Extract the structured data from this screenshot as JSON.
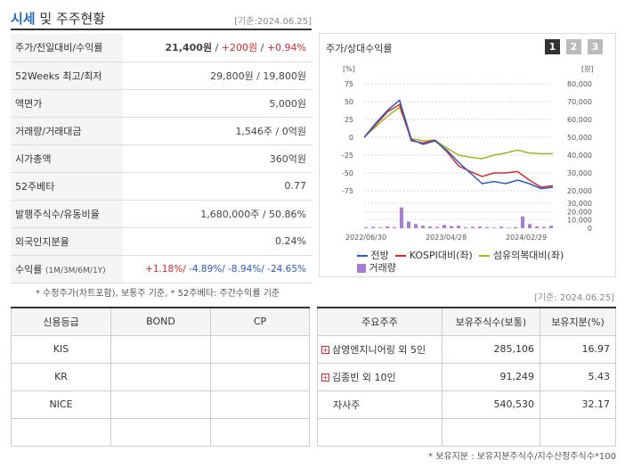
{
  "header": {
    "title_hl": "시세",
    "title_rest": " 및 주주현황",
    "date": "[기준:2024.06.25]"
  },
  "info": {
    "price_label": "주가/전일대비/수익률",
    "price": "21,400원",
    "change": "+200원",
    "rate": "+0.94%",
    "week52_label": "52Weeks 최고/최저",
    "week52_value": "29,800원 / 19,800원",
    "face_label": "액면가",
    "face_value": "5,000원",
    "volume_label": "거래량/거래대금",
    "volume_value": "1,546주 / 0억원",
    "mcap_label": "시가총액",
    "mcap_value": "360억원",
    "beta_label": "52주베타",
    "beta_value": "0.77",
    "shares_label": "발행주식수/유동비율",
    "shares_value": "1,680,000주 / 50.86%",
    "foreign_label": "외국인지분율",
    "foreign_value": "0.24%",
    "return_label": "수익률",
    "return_sub": "(1M/3M/6M/1Y)",
    "r1m": "+1.18%/",
    "r3m": "-4.89%/",
    "r6m": "-8.94%/",
    "r1y": "-24.65%"
  },
  "notes": {
    "note1": "* 수정주가(차트포함), 보통주 기준, * 52주베타: 주간수익률 기준",
    "note2": "[기준: 2024.06.25]",
    "note3": "* 보유지분 : 보유지분주식수/지수산정주식수*100"
  },
  "chart": {
    "title": "주가/상대수익률",
    "pages": [
      "1",
      "2",
      "3"
    ],
    "left_unit": "[%]",
    "right_unit": "[원]",
    "left_ticks": [
      "75",
      "50",
      "25",
      "0",
      "-25",
      "-50",
      "-75"
    ],
    "right_ticks": [
      "80,000",
      "70,000",
      "60,000",
      "50,000",
      "40,000",
      "30,000",
      "20,000"
    ],
    "vol_ticks": [
      "30,000",
      "20,000",
      "10,000",
      "0"
    ],
    "x_ticks": [
      "2022/06/30",
      "2023/04/28",
      "2024/02/29"
    ],
    "legend": {
      "price": "전방",
      "kospi": "KOSPI대비(좌)",
      "textile": "섬유의복대비(좌)",
      "volume": "거래량"
    },
    "colors": {
      "price": "#2a58c8",
      "kospi": "#d9282f",
      "textile": "#99bb22",
      "volume": "#a77cd8"
    }
  },
  "chart_data": {
    "type": "line",
    "x_range": [
      "2022/06/30",
      "2024/06/25"
    ],
    "ylim_left": [
      -75,
      75
    ],
    "ylim_right": [
      20000,
      80000
    ],
    "series": [
      {
        "name": "전방",
        "values": [
          0,
          20,
          38,
          52,
          -3,
          -10,
          -5,
          -18,
          -35,
          -50,
          -65,
          -62,
          -65,
          -60,
          -65,
          -72,
          -70
        ]
      },
      {
        "name": "KOSPI대비(좌)",
        "values": [
          0,
          18,
          36,
          46,
          -5,
          -8,
          -4,
          -20,
          -40,
          -48,
          -55,
          -50,
          -50,
          -48,
          -60,
          -70,
          -68
        ]
      },
      {
        "name": "섬유의복대비(좌)",
        "values": [
          0,
          15,
          30,
          42,
          -2,
          -5,
          -4,
          -15,
          -25,
          -28,
          -30,
          -25,
          -22,
          -18,
          -22,
          -23,
          -23
        ]
      }
    ],
    "volume": {
      "name": "거래량",
      "values": [
        1000,
        1500,
        800,
        2000,
        1200,
        25000,
        8000,
        5000,
        3000,
        2000,
        1500,
        4000,
        2500,
        3000,
        1000,
        1500,
        2000,
        1200,
        800,
        1800,
        600,
        1200,
        14000,
        5000,
        2000,
        1500,
        3000
      ]
    }
  },
  "credit": {
    "headers": [
      "신용등급",
      "BOND",
      "CP"
    ],
    "rows": [
      [
        "KIS",
        "",
        ""
      ],
      [
        "KR",
        "",
        ""
      ],
      [
        "NICE",
        "",
        ""
      ],
      [
        "",
        "",
        ""
      ]
    ]
  },
  "holders": {
    "headers": [
      "주요주주",
      "보유주식수(보통)",
      "보유지분(%)"
    ],
    "rows": [
      {
        "name": "삼영엔지니어링 외 5인",
        "shares": "285,106",
        "pct": "16.97",
        "expand": true
      },
      {
        "name": "김종빈 외 10인",
        "shares": "91,249",
        "pct": "5.43",
        "expand": true
      },
      {
        "name": "자사주",
        "shares": "540,530",
        "pct": "32.17",
        "expand": false
      },
      {
        "name": "",
        "shares": "",
        "pct": "",
        "expand": false
      }
    ]
  }
}
